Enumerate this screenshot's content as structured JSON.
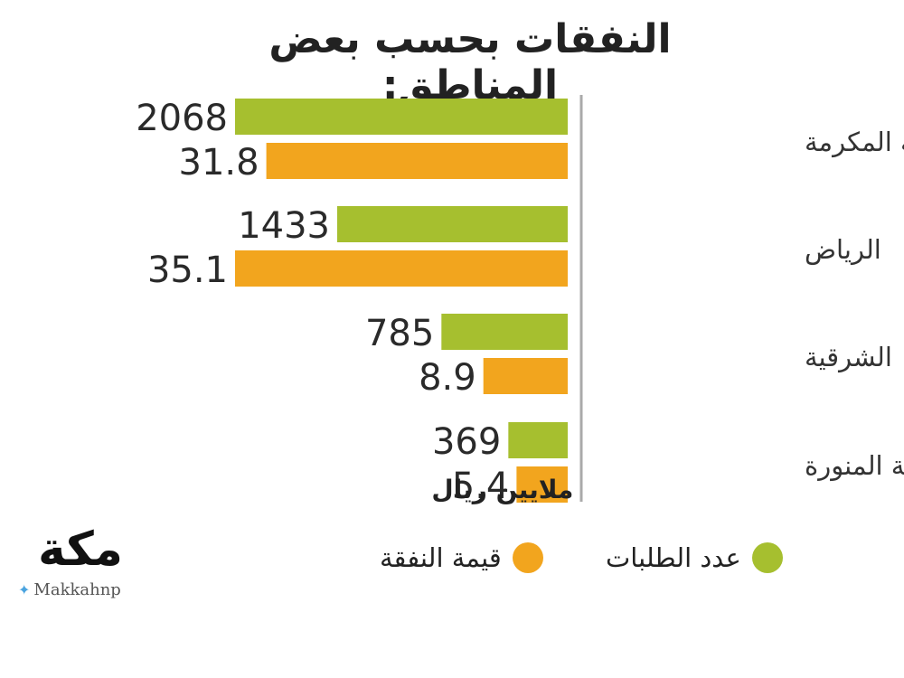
{
  "title": "النفقات بحسب بعض المناطق:",
  "logo": {
    "text": "مكة",
    "handle": "Makkahnp",
    "icon": "twitter-icon"
  },
  "colors": {
    "requests": "#a6bf2f",
    "expense": "#f2a51e",
    "axis": "#aaaaaa"
  },
  "chart_data": {
    "type": "bar",
    "orientation": "horizontal",
    "categories": [
      "مكة المكرمة",
      "الرياض",
      "الشرقية",
      "المدينة المنورة"
    ],
    "series": [
      {
        "name": "عدد الطلبات",
        "values": [
          2068,
          1433,
          785,
          369
        ],
        "value_labels": [
          "2068",
          "1433",
          "785",
          "369"
        ]
      },
      {
        "name": "قيمة النفقة",
        "values": [
          31.8,
          35.1,
          8.9,
          5.4
        ],
        "value_labels": [
          "31.8",
          "35.1",
          "8.9",
          "5.4"
        ]
      }
    ],
    "unit_label": "ملايين ريال",
    "legend": "bottom"
  }
}
